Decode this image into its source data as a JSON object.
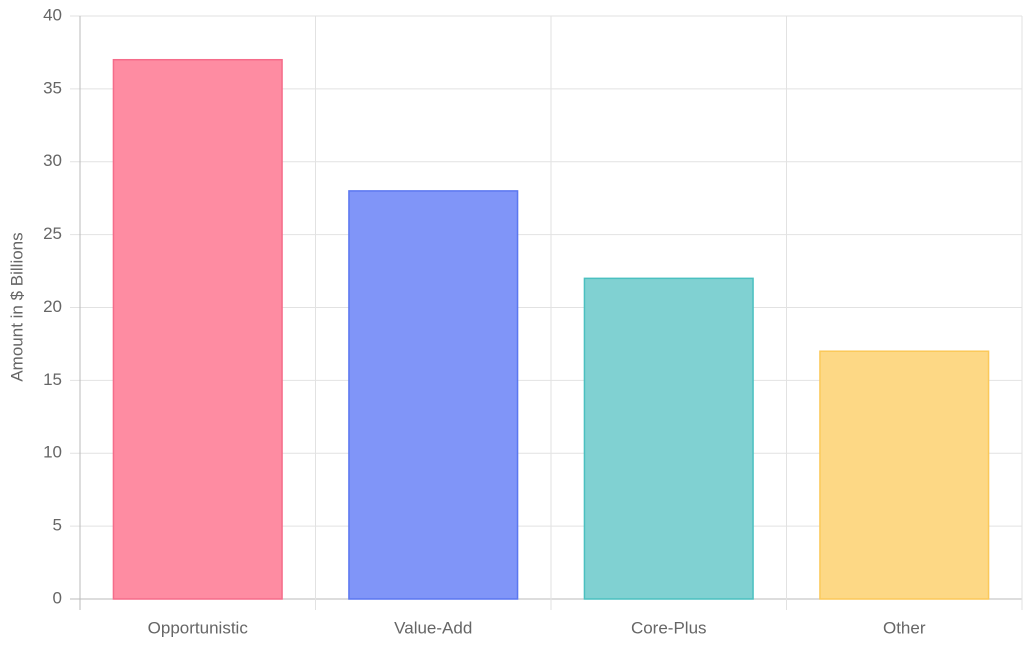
{
  "chart_data": {
    "type": "bar",
    "y_label": "Amount in $ Billions",
    "categories": [
      "Opportunistic",
      "Value-Add",
      "Core-Plus",
      "Other"
    ],
    "values": [
      37,
      28,
      22,
      17
    ],
    "colors": [
      "#fe8ca2",
      "#8095f8",
      "#80d1d2",
      "#fdd885"
    ],
    "border_colors": [
      "#f56c8a",
      "#5b77f0",
      "#4bc0c0",
      "#fbc95a"
    ],
    "ylim": [
      0,
      40
    ],
    "yticks": [
      0,
      5,
      10,
      15,
      20,
      25,
      30,
      35,
      40
    ],
    "grid": true
  }
}
